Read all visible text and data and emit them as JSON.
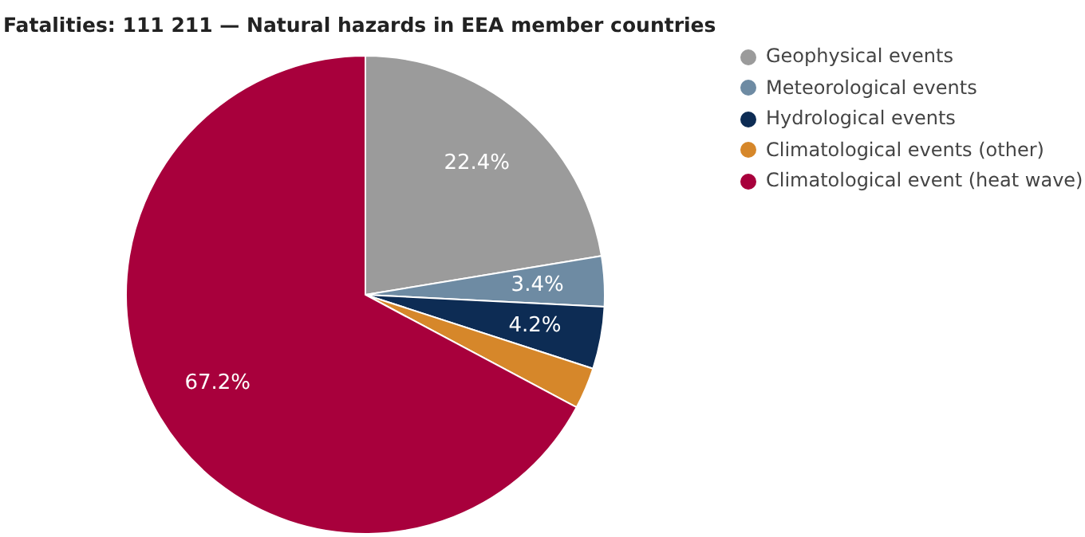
{
  "chart_data": {
    "type": "pie",
    "title": "Fatalities: 111 211 — Natural hazards in EEA member countries",
    "categories": [
      "Geophysical events",
      "Meteorological events",
      "Hydrological events",
      "Climatological events (other)",
      "Climatological event (heat wave)"
    ],
    "values": [
      22.4,
      3.4,
      4.2,
      2.8,
      67.2
    ],
    "colors": [
      "#9b9b9b",
      "#6e8ba3",
      "#0d2c54",
      "#d6872a",
      "#a8003c"
    ],
    "value_labels": [
      "22.4%",
      "3.4%",
      "4.2%",
      null,
      "67.2%"
    ],
    "legend": "top right"
  }
}
